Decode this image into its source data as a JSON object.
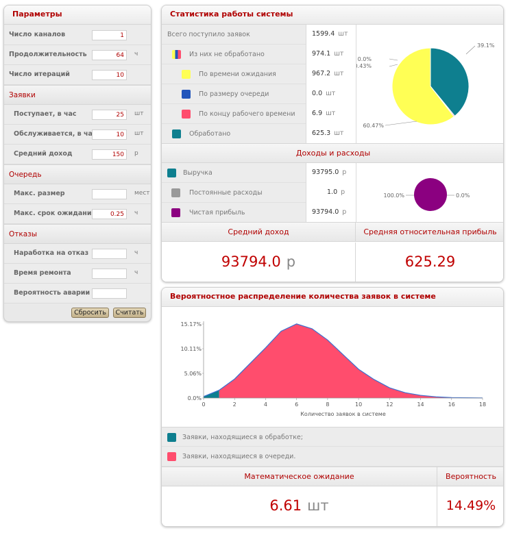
{
  "params": {
    "title": "Параметры",
    "rows": [
      {
        "label": "Число каналов",
        "value": "1",
        "unit": ""
      },
      {
        "label": "Продолжительность",
        "value": "64",
        "unit": "ч"
      },
      {
        "label": "Число итераций",
        "value": "10",
        "unit": ""
      }
    ],
    "requests_section": "Заявки",
    "requests": [
      {
        "label": "Поступает, в час",
        "value": "25",
        "unit": "шт"
      },
      {
        "label": "Обслуживается, в час",
        "value": "10",
        "unit": "шт"
      },
      {
        "label": "Средний доход",
        "value": "150",
        "unit": "р"
      }
    ],
    "queue_section": "Очередь",
    "queue": [
      {
        "label": "Макс. размер",
        "value": "",
        "unit": "мест"
      },
      {
        "label": "Макс. срок ожидания",
        "value": "0.25",
        "unit": "ч"
      }
    ],
    "failures_section": "Отказы",
    "failures": [
      {
        "label": "Наработка на отказ",
        "value": "",
        "unit": "ч"
      },
      {
        "label": "Время ремонта",
        "value": "",
        "unit": "ч"
      },
      {
        "label": "Вероятность аварии",
        "value": "",
        "unit": ""
      }
    ],
    "reset_label": "Сбросить",
    "calc_label": "Считать"
  },
  "stats": {
    "title": "Статистика работы системы",
    "total_label": "Всего поступило заявок",
    "total_value": "1599.4",
    "unprocessed_label": "Из них не обработано",
    "unprocessed_value": "974.1",
    "wait_label": "По времени ожидания",
    "wait_value": "967.2",
    "queue_label": "По размеру очереди",
    "queue_value": "0.0",
    "endtime_label": "По концу рабочего времени",
    "endtime_value": "6.9",
    "processed_label": "Обработано",
    "processed_value": "625.3",
    "unit_pcs": "шт",
    "income_title": "Доходы и расходы",
    "revenue_label": "Выручка",
    "revenue_value": "93795.0",
    "fixed_label": "Постоянные расходы",
    "fixed_value": "1.0",
    "profit_label": "Чистая прибыль",
    "profit_value": "93794.0",
    "unit_rub": "р",
    "avg_income_label": "Средний доход",
    "avg_income_value": "93794.0",
    "avg_income_unit": "р",
    "rel_profit_label": "Средняя относительная прибыль",
    "rel_profit_value": "625.29"
  },
  "colors": {
    "teal": "#0e7f8f",
    "yellow": "#ffff55",
    "blue": "#2255bb",
    "pink": "#ff4d6d",
    "gray": "#999999",
    "purple": "#8b0080",
    "red_text": "#c00000"
  },
  "pie1": {
    "slices": [
      {
        "name": "Обработано",
        "percent": 39.1,
        "label": "39.1%",
        "color": "#0e7f8f"
      },
      {
        "name": "По размеру очереди",
        "percent": 0.0,
        "label": "0.0%",
        "color": "#2255bb"
      },
      {
        "name": "По концу рабочего времени",
        "percent": 0.43,
        "label": "0.43%",
        "color": "#ff4d6d"
      },
      {
        "name": "По времени ожидания",
        "percent": 60.47,
        "label": "60.47%",
        "color": "#ffff55"
      }
    ]
  },
  "pie2": {
    "slices": [
      {
        "name": "Чистая прибыль",
        "percent": 100.0,
        "label": "100.0%",
        "color": "#8b0080"
      },
      {
        "name": "Постоянные расходы",
        "percent": 0.0,
        "label": "0.0%",
        "color": "#999999"
      }
    ]
  },
  "dist": {
    "title": "Вероятностное распределение количества заявок в системе",
    "legend_processing": "Заявки, находящиеся в обработке;",
    "legend_queue": "Заявки, находящиеся в очереди.",
    "expect_label": "Математическое ожидание",
    "expect_value": "6.61",
    "expect_unit": "шт",
    "prob_label": "Вероятность",
    "prob_value": "14.49%"
  },
  "chart_data": {
    "type": "area",
    "title": "",
    "xlabel": "Количество заявок в системе",
    "ylabel": "",
    "x": [
      0,
      1,
      2,
      3,
      4,
      5,
      6,
      7,
      8,
      9,
      10,
      11,
      12,
      13,
      14,
      15,
      16,
      17,
      18
    ],
    "y": [
      0.3,
      1.6,
      3.9,
      7.1,
      10.3,
      13.7,
      15.2,
      14.2,
      11.9,
      8.9,
      5.9,
      3.8,
      2.1,
      1.1,
      0.55,
      0.25,
      0.1,
      0.05,
      0.02
    ],
    "processing_upto_x": 1,
    "series": [
      {
        "name": "Заявки, находящиеся в обработке;",
        "color": "#0e7f8f"
      },
      {
        "name": "Заявки, находящиеся в очереди.",
        "color": "#ff4d6d"
      }
    ],
    "xticks": [
      0,
      2,
      4,
      6,
      8,
      10,
      12,
      14,
      16,
      18
    ],
    "yticks": [
      {
        "value": 0,
        "label": "0.0%"
      },
      {
        "value": 5.06,
        "label": "5.06%"
      },
      {
        "value": 10.11,
        "label": "10.11%"
      },
      {
        "value": 15.17,
        "label": "15.17%"
      }
    ],
    "xlim": [
      0,
      18
    ],
    "ylim": [
      0,
      15.17
    ]
  }
}
